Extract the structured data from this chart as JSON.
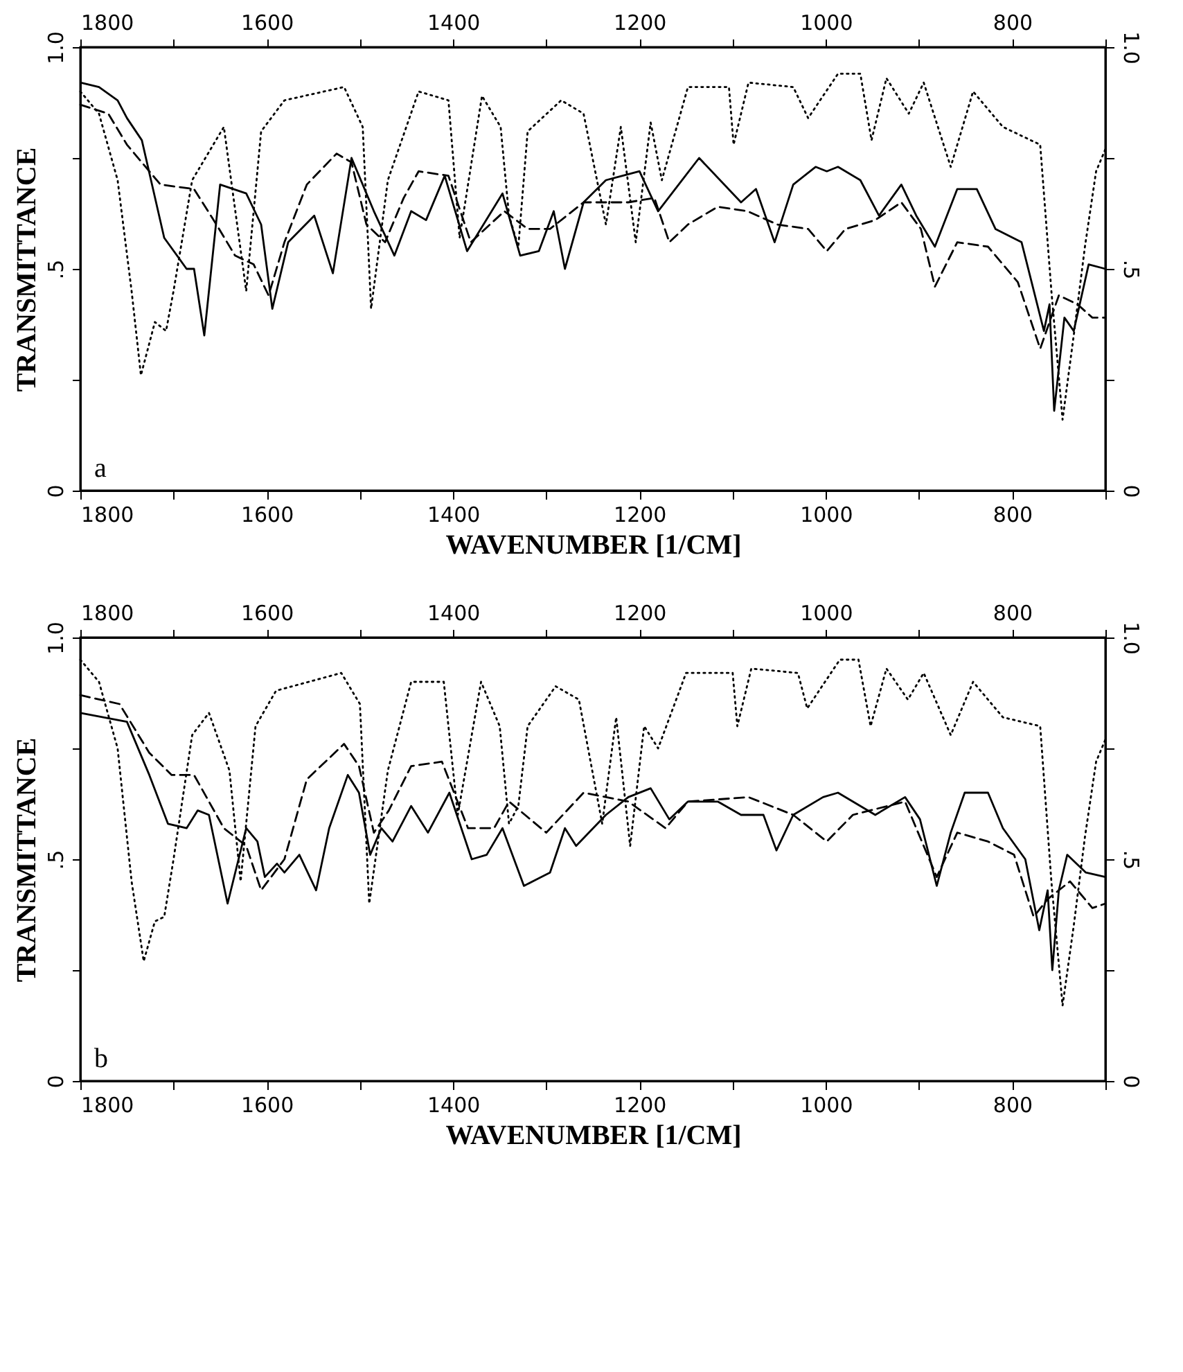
{
  "chart_data": [
    {
      "type": "line",
      "xlabel": "WAVENUMBER [1/CM]",
      "ylabel": "TRANSMITTANCE",
      "annotations": [
        "a"
      ],
      "xlim": [
        1800,
        700
      ],
      "xticks": [
        1800,
        {
          "value": 1700,
          "label": null
        },
        1600,
        {
          "value": 1500,
          "label": null
        },
        1400,
        {
          "value": 1300,
          "label": null
        },
        1200,
        {
          "value": 1100,
          "label": null
        },
        1000,
        {
          "value": 900,
          "label": null
        },
        800,
        {
          "value": 700,
          "label": null
        }
      ],
      "x2lim": [
        1800,
        700
      ],
      "x2ticks": [
        1800,
        {
          "value": 1700,
          "label": null
        },
        1600,
        {
          "value": 1500,
          "label": null
        },
        1400,
        {
          "value": 1300,
          "label": null
        },
        1200,
        {
          "value": 1100,
          "label": null
        },
        1000,
        {
          "value": 900,
          "label": null
        },
        800,
        {
          "value": 700,
          "label": null
        }
      ],
      "ylim": [
        0,
        1
      ],
      "yticks": [
        {
          "value": 0,
          "label": "0"
        },
        {
          "value": 0.25,
          "label": null
        },
        {
          "value": 0.5,
          "label": ".5"
        },
        {
          "value": 0.75,
          "label": null
        },
        {
          "value": 1,
          "label": "1.0"
        }
      ],
      "y2lim": [
        0,
        1
      ],
      "y2ticks": [
        {
          "value": 0,
          "label": "0"
        },
        {
          "value": 0.25,
          "label": null
        },
        {
          "value": 0.5,
          "label": ".5"
        },
        {
          "value": 0.75,
          "label": null
        },
        {
          "value": 1,
          "label": "1.0"
        }
      ],
      "series": [
        {
          "color": "#000000",
          "line_style": "solid",
          "x": [
            1800,
            1780,
            1760,
            1750,
            1734,
            1710,
            1686,
            1678,
            1667,
            1650,
            1622,
            1606,
            1594,
            1577,
            1549,
            1529,
            1509,
            1485,
            1463,
            1445,
            1429,
            1409,
            1385,
            1347,
            1328,
            1308,
            1292,
            1280,
            1260,
            1236,
            1200,
            1180,
            1136,
            1091,
            1075,
            1055,
            1035,
            1011,
            999,
            987,
            963,
            943,
            919,
            903,
            883,
            859,
            838,
            818,
            790,
            766,
            760,
            755,
            744,
            734,
            718,
            700
          ],
          "values": [
            0.92,
            0.91,
            0.88,
            0.84,
            0.79,
            0.57,
            0.5,
            0.5,
            0.35,
            0.69,
            0.67,
            0.6,
            0.41,
            0.56,
            0.62,
            0.49,
            0.75,
            0.63,
            0.53,
            0.63,
            0.61,
            0.71,
            0.54,
            0.67,
            0.53,
            0.54,
            0.63,
            0.5,
            0.65,
            0.7,
            0.72,
            0.63,
            0.75,
            0.65,
            0.68,
            0.56,
            0.69,
            0.73,
            0.72,
            0.73,
            0.7,
            0.62,
            0.69,
            0.62,
            0.55,
            0.68,
            0.68,
            0.59,
            0.56,
            0.36,
            0.42,
            0.18,
            0.39,
            0.36,
            0.51,
            0.5
          ]
        },
        {
          "color": "#000000",
          "line_style": "dashed",
          "x": [
            1800,
            1770,
            1750,
            1714,
            1678,
            1654,
            1634,
            1614,
            1598,
            1581,
            1557,
            1525,
            1509,
            1493,
            1473,
            1453,
            1437,
            1405,
            1381,
            1345,
            1320,
            1296,
            1260,
            1212,
            1184,
            1168,
            1148,
            1116,
            1084,
            1052,
            1019,
            999,
            979,
            947,
            919,
            898,
            883,
            859,
            826,
            794,
            770,
            750,
            730,
            714,
            700
          ],
          "values": [
            0.87,
            0.85,
            0.78,
            0.69,
            0.68,
            0.6,
            0.53,
            0.51,
            0.44,
            0.56,
            0.69,
            0.76,
            0.74,
            0.6,
            0.56,
            0.66,
            0.72,
            0.71,
            0.56,
            0.63,
            0.59,
            0.59,
            0.65,
            0.65,
            0.66,
            0.56,
            0.6,
            0.64,
            0.63,
            0.6,
            0.59,
            0.54,
            0.59,
            0.61,
            0.65,
            0.59,
            0.46,
            0.56,
            0.55,
            0.47,
            0.32,
            0.44,
            0.42,
            0.39,
            0.39
          ]
        },
        {
          "color": "#000000",
          "line_style": "dotted",
          "x": [
            1800,
            1780,
            1760,
            1745,
            1735,
            1720,
            1708,
            1700,
            1680,
            1646,
            1622,
            1606,
            1581,
            1517,
            1497,
            1488,
            1470,
            1437,
            1405,
            1393,
            1369,
            1349,
            1340,
            1330,
            1320,
            1284,
            1260,
            1236,
            1220,
            1204,
            1188,
            1176,
            1148,
            1104,
            1099,
            1083,
            1035,
            1019,
            987,
            963,
            951,
            935,
            911,
            895,
            866,
            842,
            810,
            770,
            758,
            746,
            734,
            722,
            710,
            700
          ],
          "values": [
            0.9,
            0.85,
            0.7,
            0.45,
            0.26,
            0.38,
            0.36,
            0.45,
            0.7,
            0.82,
            0.45,
            0.81,
            0.88,
            0.91,
            0.82,
            0.41,
            0.7,
            0.9,
            0.88,
            0.57,
            0.89,
            0.82,
            0.62,
            0.55,
            0.81,
            0.88,
            0.85,
            0.6,
            0.82,
            0.56,
            0.83,
            0.7,
            0.91,
            0.91,
            0.78,
            0.92,
            0.91,
            0.84,
            0.94,
            0.94,
            0.79,
            0.93,
            0.85,
            0.92,
            0.73,
            0.9,
            0.82,
            0.78,
            0.45,
            0.16,
            0.35,
            0.55,
            0.72,
            0.77
          ]
        }
      ]
    },
    {
      "type": "line",
      "xlabel": "WAVENUMBER [1/CM]",
      "ylabel": "TRANSMITTANCE",
      "annotations": [
        "b"
      ],
      "xlim": [
        1800,
        700
      ],
      "xticks": [
        1800,
        {
          "value": 1700,
          "label": null
        },
        1600,
        {
          "value": 1500,
          "label": null
        },
        1400,
        {
          "value": 1300,
          "label": null
        },
        1200,
        {
          "value": 1100,
          "label": null
        },
        1000,
        {
          "value": 900,
          "label": null
        },
        800,
        {
          "value": 700,
          "label": null
        }
      ],
      "x2lim": [
        1800,
        700
      ],
      "x2ticks": [
        1800,
        {
          "value": 1700,
          "label": null
        },
        1600,
        {
          "value": 1500,
          "label": null
        },
        1400,
        {
          "value": 1300,
          "label": null
        },
        1200,
        {
          "value": 1100,
          "label": null
        },
        1000,
        {
          "value": 900,
          "label": null
        },
        800,
        {
          "value": 700,
          "label": null
        }
      ],
      "ylim": [
        0,
        1
      ],
      "yticks": [
        {
          "value": 0,
          "label": "0"
        },
        {
          "value": 0.25,
          "label": null
        },
        {
          "value": 0.5,
          "label": ".5"
        },
        {
          "value": 0.75,
          "label": null
        },
        {
          "value": 1,
          "label": "1.0"
        }
      ],
      "y2lim": [
        0,
        1
      ],
      "y2ticks": [
        {
          "value": 0,
          "label": "0"
        },
        {
          "value": 0.25,
          "label": null
        },
        {
          "value": 0.5,
          "label": ".5"
        },
        {
          "value": 0.75,
          "label": null
        },
        {
          "value": 1,
          "label": "1.0"
        }
      ],
      "series": [
        {
          "color": "#000000",
          "line_style": "solid",
          "x": [
            1800,
            1750,
            1726,
            1706,
            1686,
            1674,
            1662,
            1642,
            1622,
            1610,
            1602,
            1589,
            1581,
            1565,
            1547,
            1533,
            1513,
            1501,
            1489,
            1477,
            1465,
            1445,
            1427,
            1404,
            1380,
            1364,
            1347,
            1324,
            1296,
            1280,
            1268,
            1236,
            1212,
            1188,
            1168,
            1148,
            1116,
            1091,
            1067,
            1053,
            1035,
            1003,
            987,
            947,
            915,
            899,
            881,
            866,
            851,
            826,
            810,
            786,
            771,
            762,
            757,
            750,
            741,
            721,
            700
          ],
          "values": [
            0.83,
            0.81,
            0.69,
            0.58,
            0.57,
            0.61,
            0.6,
            0.4,
            0.57,
            0.54,
            0.46,
            0.49,
            0.47,
            0.51,
            0.43,
            0.57,
            0.69,
            0.65,
            0.51,
            0.57,
            0.54,
            0.62,
            0.56,
            0.65,
            0.5,
            0.51,
            0.57,
            0.44,
            0.47,
            0.57,
            0.53,
            0.6,
            0.64,
            0.66,
            0.59,
            0.63,
            0.63,
            0.6,
            0.6,
            0.52,
            0.6,
            0.64,
            0.65,
            0.6,
            0.64,
            0.59,
            0.44,
            0.56,
            0.65,
            0.65,
            0.57,
            0.5,
            0.34,
            0.43,
            0.25,
            0.43,
            0.51,
            0.47,
            0.46
          ]
        },
        {
          "color": "#000000",
          "line_style": "dashed",
          "x": [
            1800,
            1758,
            1726,
            1702,
            1678,
            1646,
            1622,
            1606,
            1581,
            1557,
            1517,
            1501,
            1485,
            1469,
            1445,
            1412,
            1384,
            1356,
            1340,
            1300,
            1260,
            1212,
            1172,
            1148,
            1083,
            1035,
            999,
            971,
            915,
            881,
            859,
            826,
            798,
            777,
            762,
            738,
            714,
            700
          ],
          "values": [
            0.87,
            0.85,
            0.74,
            0.69,
            0.69,
            0.57,
            0.53,
            0.43,
            0.5,
            0.68,
            0.76,
            0.71,
            0.56,
            0.61,
            0.71,
            0.72,
            0.57,
            0.57,
            0.63,
            0.56,
            0.65,
            0.63,
            0.57,
            0.63,
            0.64,
            0.6,
            0.54,
            0.6,
            0.63,
            0.46,
            0.56,
            0.54,
            0.51,
            0.37,
            0.41,
            0.45,
            0.39,
            0.4
          ]
        },
        {
          "color": "#000000",
          "line_style": "dotted",
          "x": [
            1800,
            1780,
            1760,
            1745,
            1732,
            1720,
            1710,
            1700,
            1680,
            1662,
            1640,
            1628,
            1612,
            1590,
            1520,
            1500,
            1490,
            1470,
            1445,
            1410,
            1395,
            1370,
            1350,
            1340,
            1330,
            1320,
            1290,
            1265,
            1240,
            1225,
            1210,
            1195,
            1180,
            1150,
            1100,
            1095,
            1080,
            1030,
            1020,
            985,
            965,
            952,
            935,
            912,
            895,
            866,
            842,
            810,
            770,
            758,
            746,
            734,
            722,
            710,
            700
          ],
          "values": [
            0.95,
            0.9,
            0.75,
            0.45,
            0.27,
            0.36,
            0.37,
            0.5,
            0.78,
            0.83,
            0.7,
            0.45,
            0.8,
            0.88,
            0.92,
            0.85,
            0.4,
            0.7,
            0.9,
            0.9,
            0.6,
            0.9,
            0.8,
            0.58,
            0.62,
            0.8,
            0.89,
            0.86,
            0.58,
            0.82,
            0.53,
            0.8,
            0.75,
            0.92,
            0.92,
            0.8,
            0.93,
            0.92,
            0.84,
            0.95,
            0.95,
            0.8,
            0.93,
            0.86,
            0.92,
            0.78,
            0.9,
            0.82,
            0.8,
            0.45,
            0.17,
            0.35,
            0.55,
            0.72,
            0.77
          ]
        }
      ]
    }
  ]
}
